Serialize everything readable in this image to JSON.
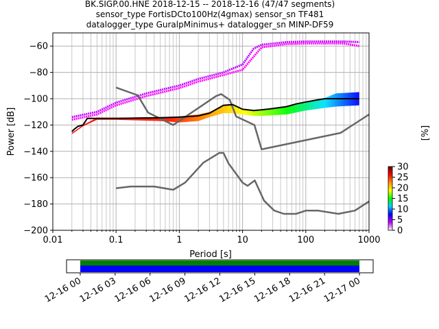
{
  "chart_data": {
    "type": "line",
    "title_lines": [
      "BK.SIGP.00.HNE   2018-12-15 -- 2018-12-16  (47/47 segments)",
      "sensor_type FortisDCto100Hz(4gmax) sensor_sn TF481",
      "datalogger_type GuralpMinimus+ datalogger_sn MINP-DF59"
    ],
    "xlabel": "Period [s]",
    "ylabel": "Power [dB]",
    "xscale": "log",
    "xlim": [
      0.01,
      1000
    ],
    "ylim": [
      -200,
      -50
    ],
    "x_tick_labels": [
      "0.01",
      "0.1",
      "1",
      "10",
      "100",
      "1000"
    ],
    "y_ticks": [
      -200,
      -180,
      -160,
      -140,
      -120,
      -100,
      -80,
      -60
    ],
    "y_tick_labels": [
      "−200",
      "−180",
      "−160",
      "−140",
      "−120",
      "−100",
      "−80",
      "−60"
    ],
    "grid": true,
    "colorbar": {
      "label": "[%]",
      "range": [
        0,
        30
      ],
      "ticks": [
        0,
        5,
        10,
        15,
        20,
        25,
        30
      ],
      "colors": [
        "#ffffff",
        "#c000ff",
        "#0000ff",
        "#00d0ff",
        "#00ff00",
        "#ffff00",
        "#ff9000",
        "#ff0000",
        "#600000"
      ]
    },
    "series": [
      {
        "key": "noise_model_high",
        "color": "#666666",
        "x": [
          0.1,
          0.22,
          0.32,
          0.8,
          3.8,
          4.6,
          6.3,
          7.9,
          15.4,
          20,
          354.8,
          1000
        ],
        "y": [
          -91.5,
          -97.4,
          -110.5,
          -120,
          -98,
          -96.5,
          -101,
          -113.5,
          -120,
          -138.5,
          -126,
          -112
        ]
      },
      {
        "key": "noise_model_low",
        "color": "#666666",
        "x": [
          0.1,
          0.17,
          0.4,
          0.8,
          1.24,
          2.4,
          4.3,
          5,
          6,
          10,
          12,
          15.6,
          21.9,
          31.6,
          45,
          70,
          101,
          154,
          328,
          600,
          1000
        ],
        "y": [
          -168,
          -166.7,
          -166.7,
          -169.2,
          -163.7,
          -148.6,
          -141.2,
          -141.2,
          -149.1,
          -163.8,
          -166.2,
          -162.1,
          -177.5,
          -185,
          -187.5,
          -187.5,
          -185,
          -185,
          -187.5,
          -185,
          -178
        ]
      },
      {
        "key": "mode",
        "color": "#000000",
        "x": [
          0.02,
          0.022,
          0.025,
          0.03,
          0.035,
          0.05,
          0.1,
          0.5,
          1,
          2,
          3,
          5,
          7,
          10,
          15,
          20,
          30,
          50,
          70,
          100,
          150,
          200,
          300,
          500,
          700
        ],
        "y": [
          -125,
          -123,
          -121,
          -120,
          -115,
          -115,
          -115,
          -114.5,
          -114,
          -113,
          -111,
          -105,
          -104.5,
          -108,
          -109,
          -108.5,
          -107.5,
          -106,
          -104,
          -102.5,
          -101,
          -100,
          -100,
          -100,
          -100
        ]
      }
    ],
    "pdf_bands": [
      {
        "key": "upper_band",
        "x": [
          0.02,
          0.05,
          0.1,
          0.3,
          1,
          2,
          5,
          10,
          15,
          20,
          50,
          100,
          200,
          400,
          700
        ],
        "y": [
          -114,
          -110,
          -103,
          -96,
          -90,
          -85,
          -80,
          -74,
          -62,
          -59,
          -57,
          -56.5,
          -56.5,
          -56.5,
          -57
        ]
      },
      {
        "key": "middle_band",
        "x": [
          0.02,
          0.05,
          0.1,
          0.3,
          1,
          2,
          5,
          10,
          15,
          20,
          50,
          100,
          200,
          400,
          700
        ],
        "y": [
          -116,
          -112,
          -105,
          -98,
          -92,
          -87,
          -82,
          -78,
          -68,
          -61,
          -58.5,
          -58,
          -58,
          -58,
          -60
        ]
      },
      {
        "key": "main_band_top",
        "x": [
          0.02,
          0.03,
          0.05,
          0.1,
          0.5,
          1,
          2,
          3,
          5,
          7,
          10,
          15,
          20,
          50,
          100,
          200,
          300,
          700
        ],
        "y": [
          -126,
          -120,
          -114.5,
          -114.5,
          -114,
          -113.5,
          -112,
          -110,
          -105,
          -104.5,
          -107.5,
          -108.5,
          -108,
          -106,
          -103,
          -99.5,
          -96,
          -95
        ]
      },
      {
        "key": "main_band_bottom",
        "x": [
          0.02,
          0.03,
          0.05,
          0.1,
          0.5,
          1,
          2,
          3,
          5,
          7,
          10,
          15,
          20,
          50,
          100,
          200,
          300,
          700
        ],
        "y": [
          -127,
          -121,
          -116,
          -116,
          -117,
          -118,
          -117,
          -114,
          -111,
          -111,
          -112,
          -113,
          -113,
          -112,
          -109,
          -107,
          -106,
          -105
        ]
      }
    ]
  },
  "timeline": {
    "tick_labels": [
      "12-16 00",
      "12-16 03",
      "12-16 06",
      "12-16 09",
      "12-16 12",
      "12-16 15",
      "12-16 18",
      "12-16 21",
      "12-17 00"
    ],
    "bar_start_label": "12-16 00",
    "bar_end_label": "12-17 00",
    "top_color": "#008000",
    "bottom_color": "#0000ff"
  }
}
